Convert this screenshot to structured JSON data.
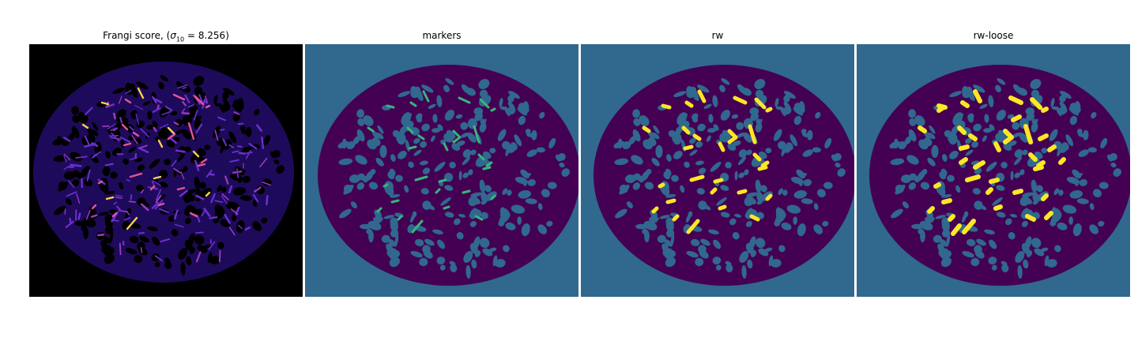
{
  "panels": [
    {
      "title_prefix": "Frangi score, (",
      "sigma": "σ",
      "sigma_sub": "10",
      "title_suffix": " = 8.256)"
    },
    {
      "title": "markers"
    },
    {
      "title": "rw"
    },
    {
      "title": "rw-loose"
    }
  ],
  "colors": {
    "background_dark": "#000000",
    "frangi_low": "#3a1a8c",
    "frangi_high": "#fcd24a",
    "seg_background": "#31688e",
    "seg_foreground": "#440154",
    "marker": "#35b779",
    "label_yellow": "#fde725"
  }
}
